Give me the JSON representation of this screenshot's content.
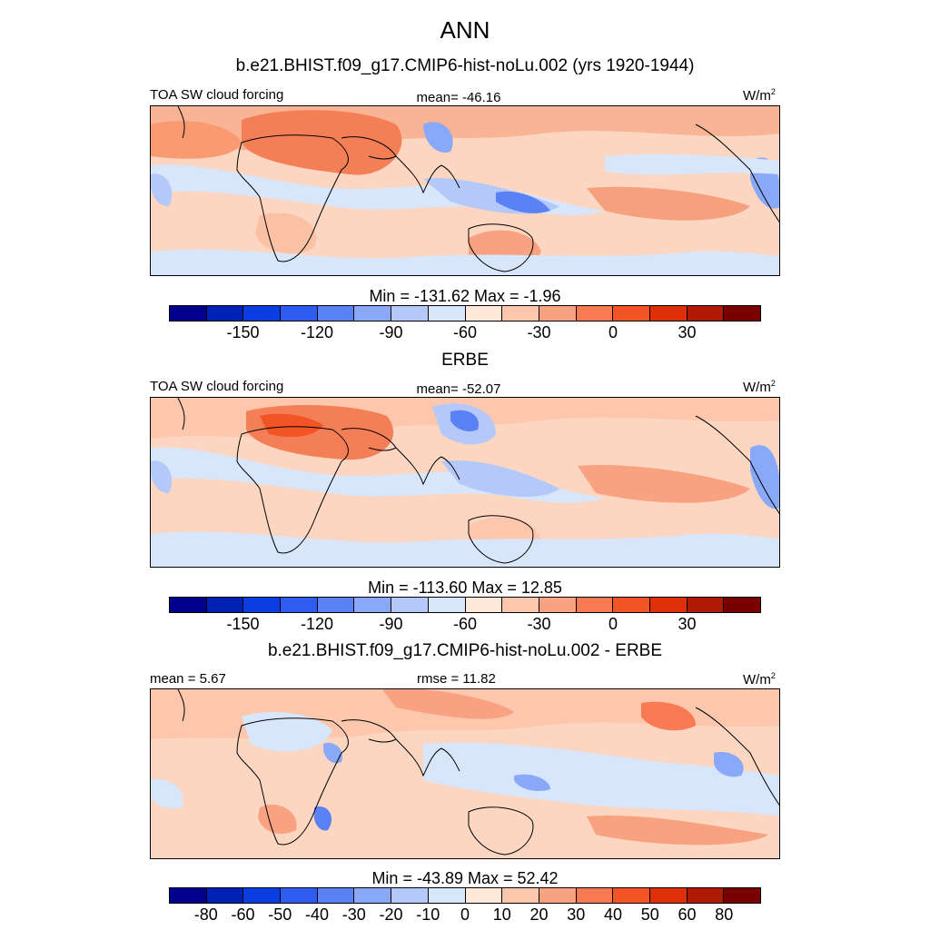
{
  "title": "ANN",
  "panels": [
    {
      "heading": "b.e21.BHIST.f09_g17.CMIP6-hist-noLu.002 (yrs 1920-1944)",
      "left_label": "TOA SW cloud forcing",
      "center_label": "mean= -46.16",
      "units_label": "W/m",
      "units_sup": "2",
      "minmax": "Min = -131.62 Max =  -1.96"
    },
    {
      "heading": "ERBE",
      "left_label": "TOA SW cloud forcing",
      "center_label": "mean= -52.07",
      "units_label": "W/m",
      "units_sup": "2",
      "minmax": "Min = -113.60 Max =  12.85"
    },
    {
      "heading": "b.e21.BHIST.f09_g17.CMIP6-hist-noLu.002 - ERBE",
      "left_label": "mean =   5.67",
      "center_label": "rmse =  11.82",
      "units_label": "W/m",
      "units_sup": "2",
      "minmax": "Min = -43.89 Max =  52.42"
    }
  ],
  "colorbars": {
    "main": {
      "colors": [
        "#00008c",
        "#0022b4",
        "#0b3ee0",
        "#2f5cf0",
        "#5a82f5",
        "#8aa8f8",
        "#b4c8fa",
        "#d8e6fb",
        "#ffe8d8",
        "#fcc7ad",
        "#f9a282",
        "#f77a52",
        "#f25426",
        "#de3008",
        "#b01a04",
        "#7a0000"
      ],
      "tick_labels": [
        "-150",
        "-120",
        "-90",
        "-60",
        "-30",
        "0",
        "30"
      ]
    },
    "diff": {
      "colors": [
        "#00008c",
        "#0022b4",
        "#0b3ee0",
        "#2f5cf0",
        "#5a82f5",
        "#8aa8f8",
        "#b4c8fa",
        "#d8e6fb",
        "#ffe8d8",
        "#fcc7ad",
        "#f9a282",
        "#f77a52",
        "#f25426",
        "#de3008",
        "#b01a04",
        "#7a0000"
      ],
      "tick_labels": [
        "-80",
        "-60",
        "-50",
        "-40",
        "-30",
        "-20",
        "-10",
        "0",
        "10",
        "20",
        "30",
        "40",
        "50",
        "60",
        "80"
      ]
    }
  }
}
